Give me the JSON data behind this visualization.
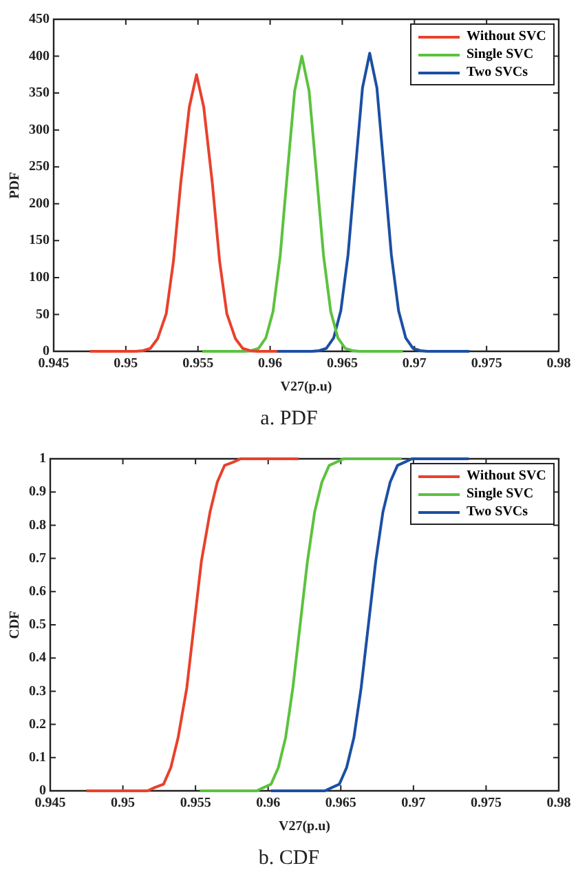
{
  "chart_data": [
    {
      "type": "line",
      "xlabel": "V27(p.u)",
      "ylabel": "PDF",
      "annotations": [
        "a. PDF"
      ],
      "xlim": [
        0.945,
        0.98
      ],
      "xticks": [
        0.945,
        0.95,
        0.955,
        0.96,
        0.965,
        0.97,
        0.975,
        0.98
      ],
      "ylim": [
        0,
        450
      ],
      "yticks": [
        0,
        50,
        100,
        150,
        200,
        250,
        300,
        350,
        400,
        450
      ],
      "grid": false,
      "legend": "top right",
      "marker": "none",
      "line_style": "solid",
      "series": [
        {
          "name": "Without SVC",
          "color": "#e8412c",
          "x": [
            0.9475,
            0.9507,
            0.9512,
            0.9517,
            0.9522,
            0.9528,
            0.9533,
            0.9538,
            0.9544,
            0.9549,
            0.9554,
            0.956,
            0.9565,
            0.957,
            0.9576,
            0.9581,
            0.9586,
            0.9591,
            0.9605
          ],
          "values": [
            0,
            0,
            1,
            4,
            17,
            51,
            122,
            227,
            331,
            375,
            331,
            227,
            122,
            51,
            17,
            4,
            1,
            0,
            0
          ]
        },
        {
          "name": "Single SVC",
          "color": "#5cc23f",
          "x": [
            0.9553,
            0.9582,
            0.9587,
            0.9592,
            0.9597,
            0.9602,
            0.9607,
            0.9612,
            0.9617,
            0.9622,
            0.9627,
            0.9632,
            0.9637,
            0.9642,
            0.9647,
            0.9652,
            0.9657,
            0.9662,
            0.9692
          ],
          "values": [
            0,
            0,
            1,
            4,
            18,
            54,
            130,
            243,
            353,
            400,
            353,
            243,
            130,
            54,
            18,
            4,
            1,
            0,
            0
          ]
        },
        {
          "name": "Two SVCs",
          "color": "#1c4fa3",
          "x": [
            0.9602,
            0.9629,
            0.9634,
            0.9639,
            0.9644,
            0.9649,
            0.9654,
            0.9659,
            0.9664,
            0.9669,
            0.9674,
            0.9679,
            0.9684,
            0.9689,
            0.9694,
            0.9699,
            0.9704,
            0.9709,
            0.9738
          ],
          "values": [
            0,
            0,
            1,
            4,
            18,
            55,
            131,
            245,
            357,
            404,
            357,
            245,
            131,
            55,
            18,
            4,
            1,
            0,
            0
          ]
        }
      ]
    },
    {
      "type": "line",
      "xlabel": "V27(p.u)",
      "ylabel": "CDF",
      "annotations": [
        "b. CDF"
      ],
      "xlim": [
        0.945,
        0.98
      ],
      "xticks": [
        0.945,
        0.95,
        0.955,
        0.96,
        0.965,
        0.97,
        0.975,
        0.98
      ],
      "ylim": [
        0,
        1
      ],
      "yticks": [
        0,
        0.1,
        0.2,
        0.3,
        0.4,
        0.5,
        0.6,
        0.7,
        0.8,
        0.9,
        1
      ],
      "grid": false,
      "legend": "top right",
      "marker": "none",
      "line_style": "solid",
      "series": [
        {
          "name": "Without SVC",
          "color": "#e8412c",
          "x": [
            0.9475,
            0.9517,
            0.9522,
            0.9528,
            0.9533,
            0.9538,
            0.9544,
            0.9549,
            0.9554,
            0.956,
            0.9565,
            0.957,
            0.9576,
            0.9581,
            0.9621
          ],
          "values": [
            0,
            0,
            0.01,
            0.02,
            0.07,
            0.16,
            0.31,
            0.5,
            0.69,
            0.84,
            0.93,
            0.98,
            0.99,
            1,
            1
          ]
        },
        {
          "name": "Single SVC",
          "color": "#5cc23f",
          "x": [
            0.9553,
            0.9592,
            0.9597,
            0.9602,
            0.9607,
            0.9612,
            0.9617,
            0.9622,
            0.9627,
            0.9632,
            0.9637,
            0.9642,
            0.9647,
            0.9652,
            0.9692
          ],
          "values": [
            0,
            0,
            0.01,
            0.02,
            0.07,
            0.16,
            0.31,
            0.5,
            0.69,
            0.84,
            0.93,
            0.98,
            0.99,
            1,
            1
          ]
        },
        {
          "name": "Two SVCs",
          "color": "#1c4fa3",
          "x": [
            0.9602,
            0.9639,
            0.9644,
            0.9649,
            0.9654,
            0.9659,
            0.9664,
            0.9669,
            0.9674,
            0.9679,
            0.9684,
            0.9689,
            0.9694,
            0.9699,
            0.9738
          ],
          "values": [
            0,
            0,
            0.01,
            0.02,
            0.07,
            0.16,
            0.31,
            0.5,
            0.69,
            0.84,
            0.93,
            0.98,
            0.99,
            1,
            1
          ]
        }
      ]
    }
  ]
}
